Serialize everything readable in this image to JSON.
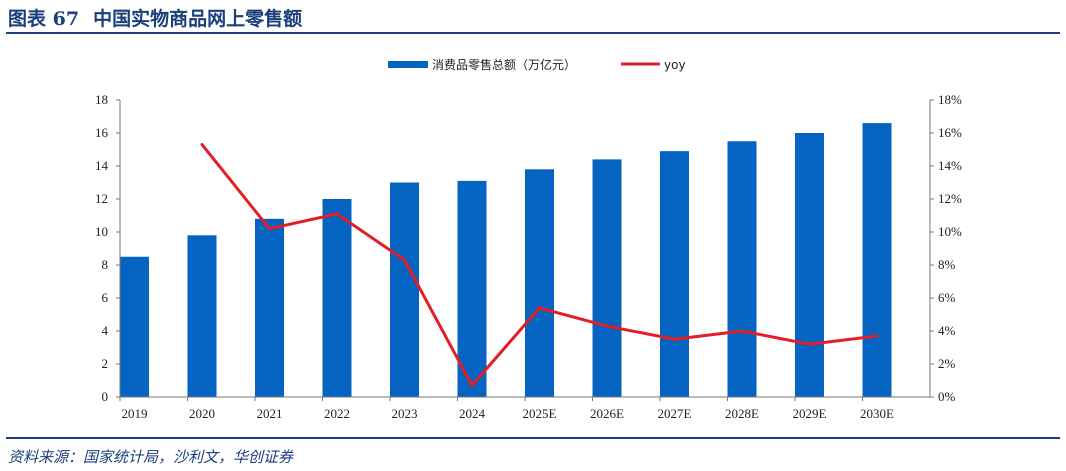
{
  "header": {
    "figure_no": "图表 67",
    "title": "中国实物商品网上零售额"
  },
  "footer": {
    "source": "资料来源：国家统计局，沙利文，华创证券"
  },
  "chart_data": {
    "type": "bar",
    "categories": [
      "2019",
      "2020",
      "2021",
      "2022",
      "2023",
      "2024",
      "2025E",
      "2026E",
      "2027E",
      "2028E",
      "2029E",
      "2030E"
    ],
    "series": [
      {
        "name": "消费品零售总额（万亿元）",
        "type": "bar",
        "axis": "left",
        "color": "#0563c1",
        "values": [
          8.5,
          9.8,
          10.8,
          12.0,
          13.0,
          13.1,
          13.8,
          14.4,
          14.9,
          15.5,
          16.0,
          16.6
        ]
      },
      {
        "name": "yoy",
        "type": "line",
        "axis": "right",
        "color": "#e31e24",
        "values": [
          null,
          15.3,
          10.2,
          11.1,
          8.3,
          0.7,
          5.4,
          4.3,
          3.5,
          4.0,
          3.2,
          3.7
        ]
      }
    ],
    "y_left": {
      "min": 0,
      "max": 18,
      "step": 2,
      "ticks": [
        "0",
        "2",
        "4",
        "6",
        "8",
        "10",
        "12",
        "14",
        "16",
        "18"
      ]
    },
    "y_right": {
      "min": 0,
      "max": 18,
      "step": 2,
      "ticks": [
        "0%",
        "2%",
        "4%",
        "6%",
        "8%",
        "10%",
        "12%",
        "14%",
        "16%",
        "18%"
      ]
    },
    "legend": {
      "position": "top-center",
      "labels": [
        "消费品零售总额（万亿元）",
        "yoy"
      ]
    },
    "grid": false
  }
}
